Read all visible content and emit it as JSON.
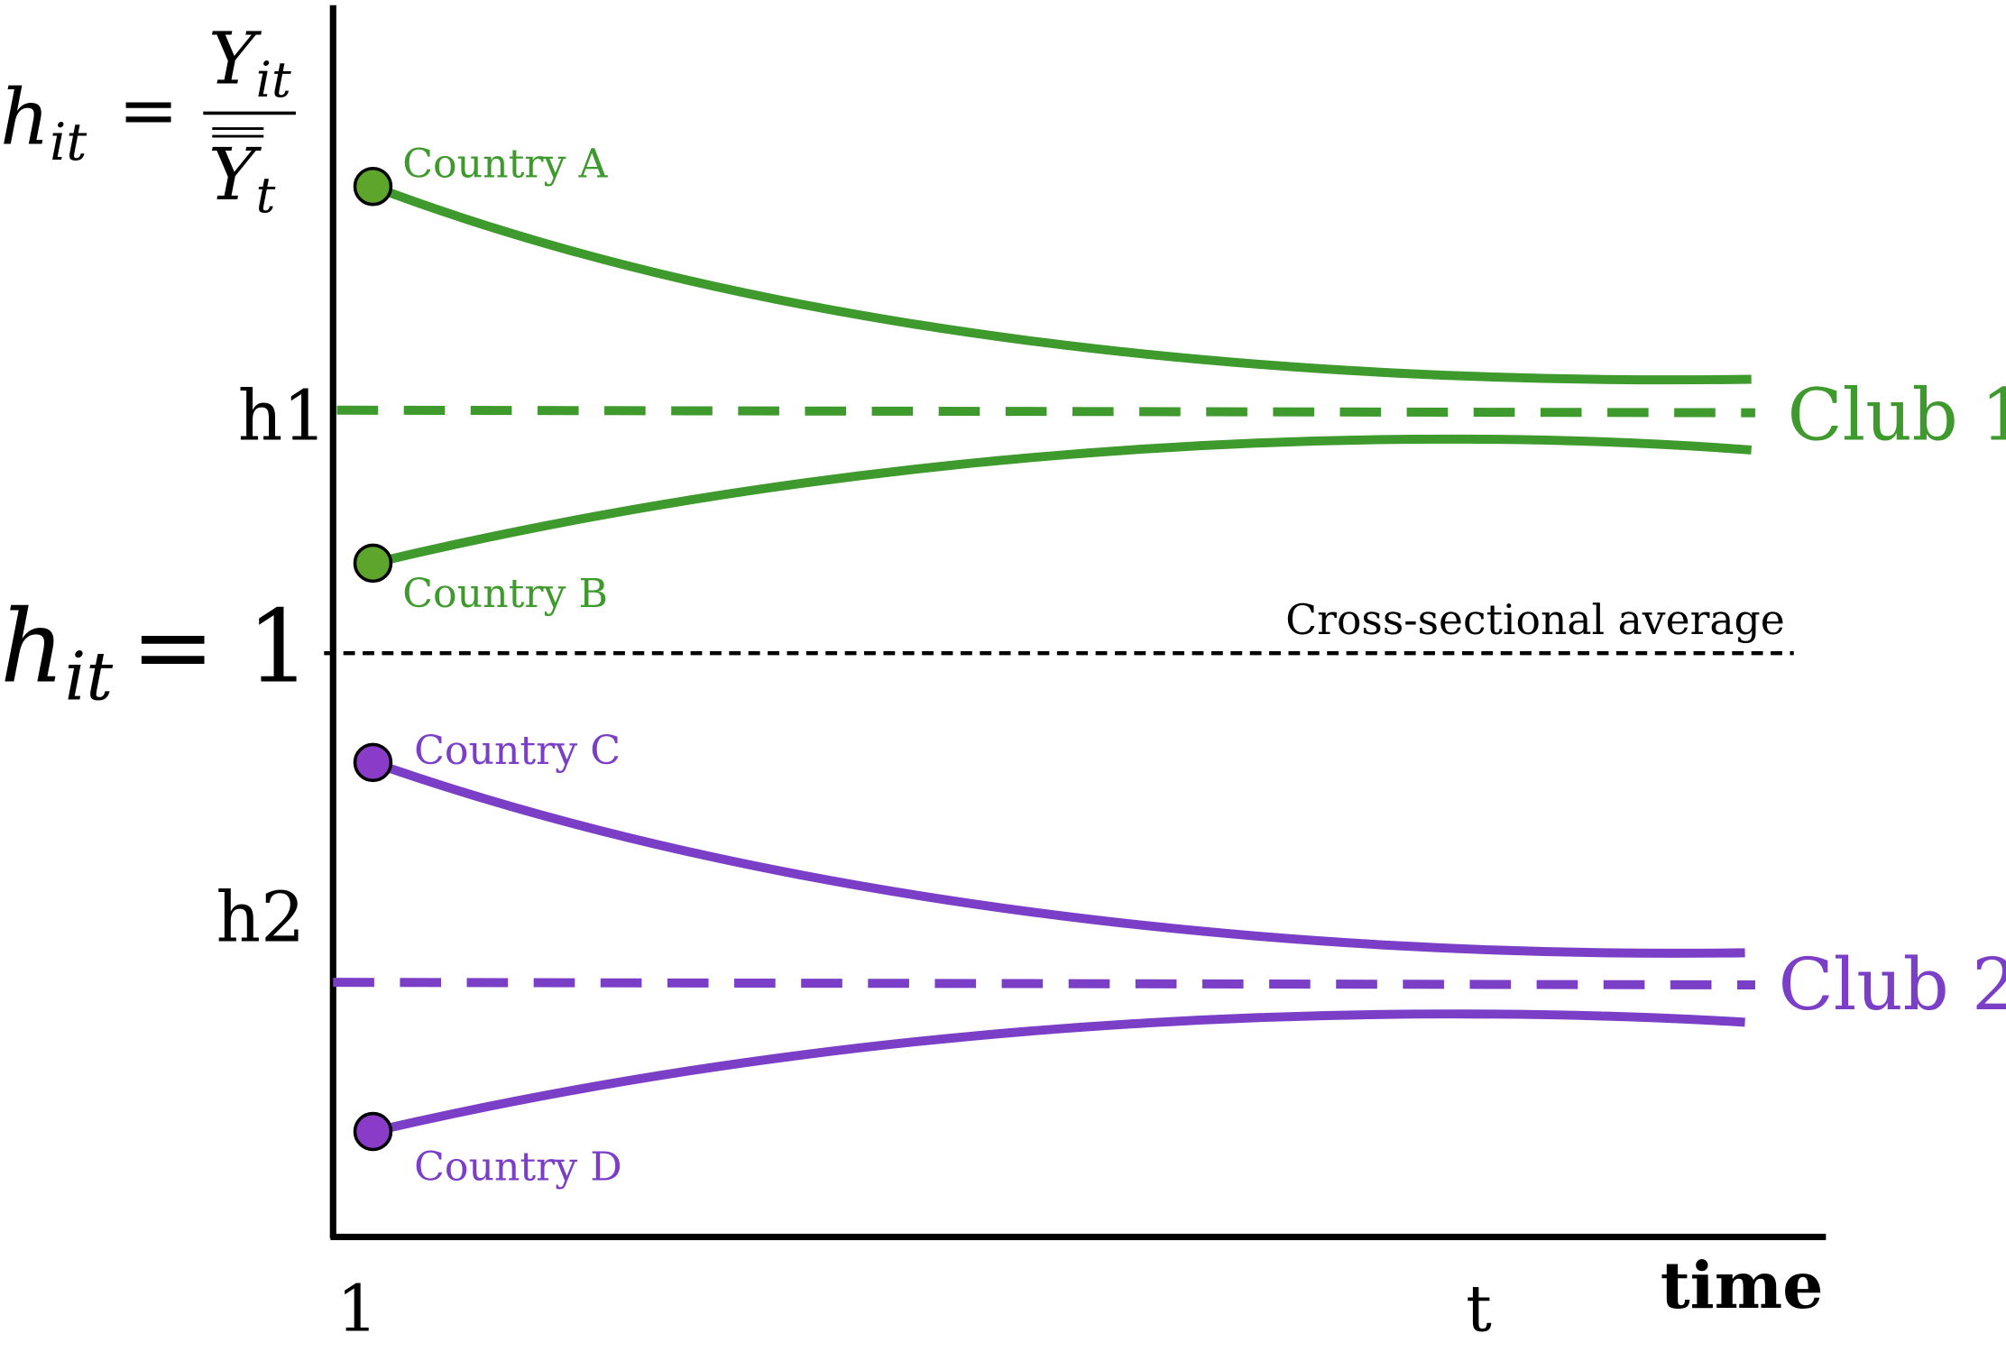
{
  "formula": {
    "lhs": "h",
    "lhs_sub": "it",
    "equals": "=",
    "numerator": "Y",
    "numerator_sub": "it",
    "denominator": "Y",
    "denominator_sub": "t"
  },
  "average_formula": {
    "lhs": "h",
    "lhs_sub": "it",
    "rhs": "= 1"
  },
  "levels": {
    "h1": "h1",
    "h2": "h2"
  },
  "countries": [
    "Country A",
    "Country B",
    "Country C",
    "Country D"
  ],
  "average_label": "Cross-sectional average",
  "clubs": [
    "Club 1",
    "Club 2"
  ],
  "x_axis": {
    "start": "1",
    "end": "t",
    "label": "time"
  }
}
